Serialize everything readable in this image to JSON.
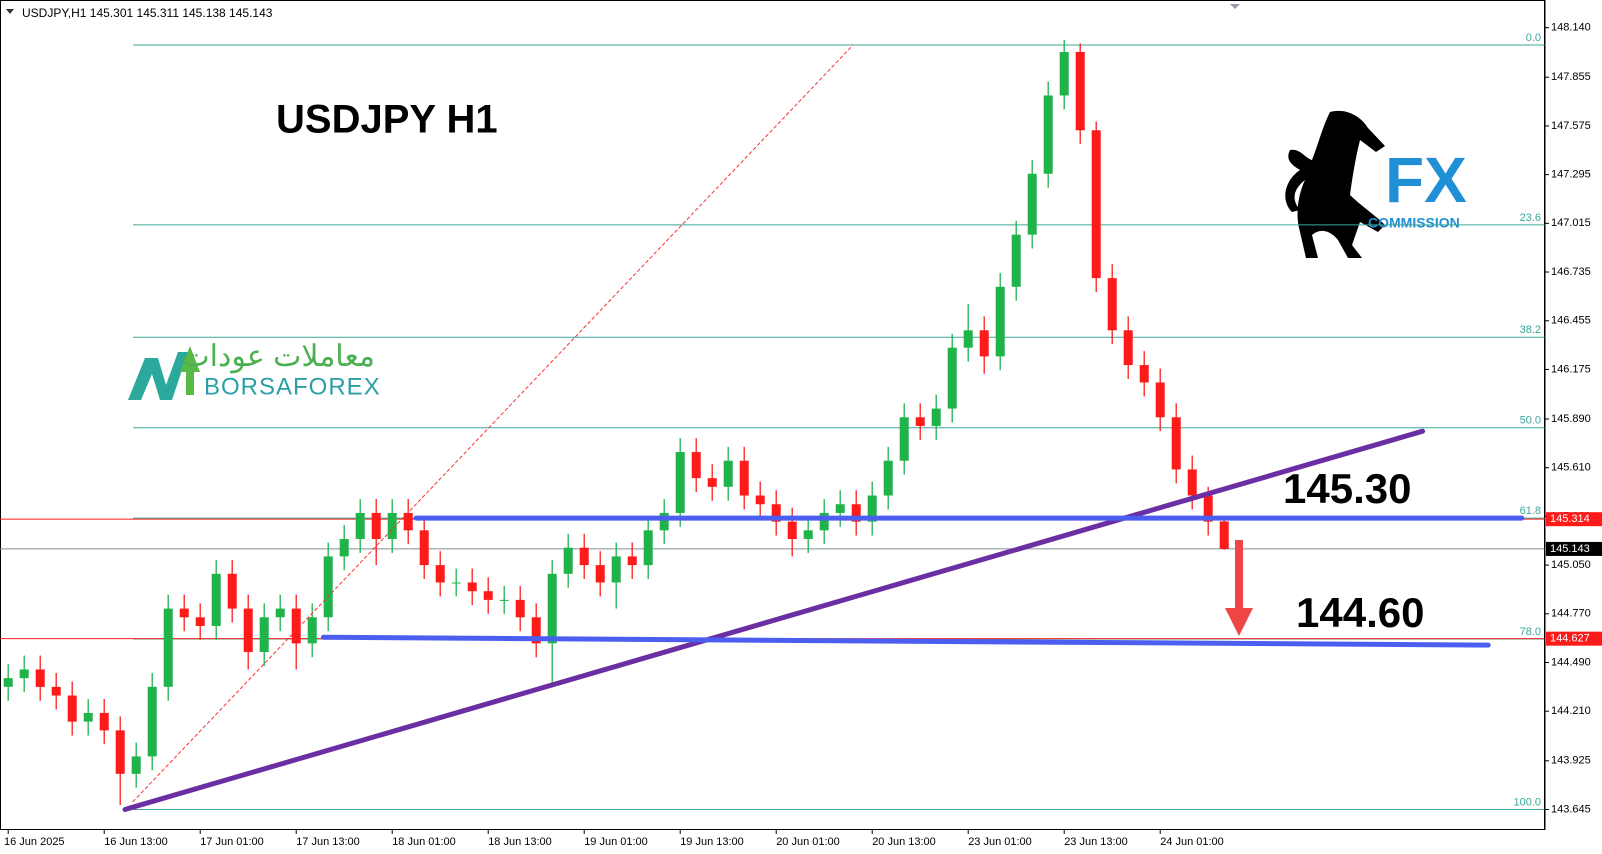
{
  "chart_data": {
    "type": "candlestick",
    "header": "USDJPY,H1  145.301 145.311 145.138 145.143",
    "title": "USDJPY  H1",
    "up_color": "#1fb34a",
    "down_color": "#ff1a1a",
    "ylim": [
      143.527,
      148.299
    ],
    "yticks": [
      {
        "value": 148.14,
        "label": "148.140"
      },
      147.855,
      147.575,
      147.295,
      147.015,
      146.735,
      146.455,
      146.175,
      {
        "value": 145.89,
        "label": "145.890"
      },
      {
        "value": 145.61,
        "label": "145.610"
      },
      {
        "value": 145.33,
        "label": "145.330"
      },
      {
        "value": 145.05,
        "label": "145.050"
      },
      {
        "value": 144.77,
        "label": "144.770"
      },
      {
        "value": 144.49,
        "label": "144.490"
      },
      {
        "value": 144.21,
        "label": "144.210"
      },
      143.925,
      143.645
    ],
    "xticks": [
      {
        "value": 0,
        "label": "16 Jun 2025"
      },
      {
        "value": 6,
        "label": "16 Jun 13:00"
      },
      {
        "value": 12,
        "label": "17 Jun 01:00"
      },
      {
        "value": 18,
        "label": "17 Jun 13:00"
      },
      {
        "value": 24,
        "label": "18 Jun 01:00"
      },
      {
        "value": 30,
        "label": "18 Jun 13:00"
      },
      {
        "value": 36,
        "label": "19 Jun 01:00"
      },
      {
        "value": 42,
        "label": "19 Jun 13:00"
      },
      {
        "value": 48,
        "label": "20 Jun 01:00"
      },
      {
        "value": 54,
        "label": "20 Jun 13:00"
      },
      {
        "value": 60,
        "label": "23 Jun 01:00"
      },
      {
        "value": 66,
        "label": "23 Jun 13:00"
      },
      {
        "value": 72,
        "label": "24 Jun 01:00"
      }
    ],
    "open": [
      144.35,
      144.4,
      144.45,
      144.35,
      144.3,
      144.15,
      144.2,
      144.1,
      143.85,
      143.95,
      144.35,
      144.8,
      144.75,
      144.7,
      145.0,
      144.8,
      144.55,
      144.75,
      144.8,
      144.6,
      144.75,
      145.1,
      145.2,
      145.35,
      145.2,
      145.35,
      145.25,
      145.05,
      144.95,
      144.95,
      144.9,
      144.85,
      144.85,
      144.75,
      144.6,
      145.0,
      145.15,
      145.05,
      144.95,
      145.1,
      145.05,
      145.25,
      145.35,
      145.7,
      145.55,
      145.5,
      145.65,
      145.45,
      145.4,
      145.3,
      145.2,
      145.25,
      145.35,
      145.4,
      145.3,
      145.45,
      145.65,
      145.9,
      145.85,
      145.95,
      146.3,
      146.4,
      146.25,
      146.65,
      146.95,
      147.3,
      147.75,
      148.0,
      147.55,
      146.7,
      146.4,
      146.2,
      146.1,
      145.9,
      145.6,
      145.45,
      145.301
    ],
    "high": [
      144.48,
      144.53,
      144.53,
      144.43,
      144.38,
      144.28,
      144.28,
      144.18,
      144.03,
      144.43,
      144.88,
      144.88,
      144.83,
      145.08,
      145.08,
      144.88,
      144.83,
      144.88,
      144.88,
      144.83,
      145.18,
      145.28,
      145.43,
      145.43,
      145.43,
      145.43,
      145.33,
      145.13,
      145.03,
      145.03,
      144.98,
      144.93,
      144.93,
      144.83,
      145.08,
      145.23,
      145.23,
      145.13,
      145.18,
      145.18,
      145.33,
      145.43,
      145.78,
      145.78,
      145.63,
      145.73,
      145.73,
      145.53,
      145.48,
      145.38,
      145.33,
      145.43,
      145.48,
      145.48,
      145.53,
      145.73,
      145.98,
      145.98,
      146.03,
      146.38,
      146.55,
      146.48,
      146.73,
      147.03,
      147.38,
      147.83,
      148.07,
      148.05,
      147.6,
      146.78,
      146.48,
      146.28,
      146.18,
      145.98,
      145.68,
      145.5,
      145.311
    ],
    "low": [
      144.27,
      144.32,
      144.27,
      144.22,
      144.07,
      144.07,
      144.02,
      143.67,
      143.77,
      143.87,
      144.27,
      144.67,
      144.62,
      144.62,
      144.72,
      144.45,
      144.47,
      144.67,
      144.45,
      144.52,
      144.67,
      145.02,
      145.12,
      145.05,
      145.12,
      145.17,
      144.97,
      144.87,
      144.87,
      144.82,
      144.77,
      144.77,
      144.67,
      144.52,
      144.35,
      144.92,
      144.97,
      144.87,
      144.8,
      144.97,
      144.97,
      145.17,
      145.27,
      145.47,
      145.42,
      145.42,
      145.37,
      145.32,
      145.22,
      145.1,
      145.12,
      145.17,
      145.27,
      145.22,
      145.22,
      145.37,
      145.57,
      145.77,
      145.77,
      145.87,
      146.22,
      146.15,
      146.17,
      146.57,
      146.87,
      147.22,
      147.67,
      147.47,
      146.62,
      146.32,
      146.12,
      146.02,
      145.82,
      145.52,
      145.37,
      145.22,
      145.138
    ],
    "close": [
      144.4,
      144.45,
      144.35,
      144.3,
      144.15,
      144.2,
      144.1,
      143.85,
      143.95,
      144.35,
      144.8,
      144.75,
      144.7,
      145.0,
      144.8,
      144.55,
      144.75,
      144.8,
      144.6,
      144.75,
      145.1,
      145.2,
      145.35,
      145.2,
      145.35,
      145.25,
      145.05,
      144.95,
      144.95,
      144.9,
      144.85,
      144.85,
      144.75,
      144.6,
      145.0,
      145.15,
      145.05,
      144.95,
      145.1,
      145.05,
      145.25,
      145.35,
      145.7,
      145.55,
      145.5,
      145.65,
      145.45,
      145.4,
      145.3,
      145.2,
      145.25,
      145.35,
      145.4,
      145.3,
      145.45,
      145.65,
      145.9,
      145.85,
      145.95,
      146.3,
      146.4,
      146.25,
      146.65,
      146.95,
      147.3,
      147.75,
      148.0,
      147.55,
      146.7,
      146.4,
      146.2,
      146.1,
      145.9,
      145.6,
      145.45,
      145.3,
      145.143
    ],
    "fib_levels": [
      {
        "label": "0.0",
        "value": 148.04
      },
      {
        "label": "23.6",
        "value": 147.006
      },
      {
        "label": "38.2",
        "value": 146.36
      },
      {
        "label": "50.0",
        "value": 145.84
      },
      {
        "label": "61.8",
        "value": 145.32
      },
      {
        "label": "78.0",
        "value": 144.625
      },
      {
        "label": "100.0",
        "value": 143.645
      }
    ],
    "price_lines": [
      {
        "value": 145.314,
        "color": "#ff1a1a"
      },
      {
        "value": 144.627,
        "color": "#ff1a1a"
      },
      {
        "value": 145.143,
        "color": "#000000"
      }
    ],
    "trendlines": [
      {
        "x": [
          7.8,
          52.8
        ],
        "y": [
          143.69,
          148.04
        ],
        "color": "#ff3030",
        "dash": true
      },
      {
        "x": [
          7.3,
          88.4
        ],
        "y": [
          143.645,
          145.82
        ],
        "color": "#6b2fa3"
      },
      {
        "x": [
          25.5,
          94.6
        ],
        "y": [
          145.32,
          145.32
        ],
        "color": "#4b5ef0"
      },
      {
        "x": [
          19.7,
          92.5
        ],
        "y": [
          144.635,
          144.59
        ],
        "color": "#4b5ef0"
      }
    ],
    "annotations": [
      "145.30",
      "144.60"
    ]
  },
  "branding": {
    "borsa_arabic": "معاملات عودات",
    "borsa": "BORSAFOREX",
    "fx": "FX",
    "fx_sub": "COMMISSION"
  }
}
